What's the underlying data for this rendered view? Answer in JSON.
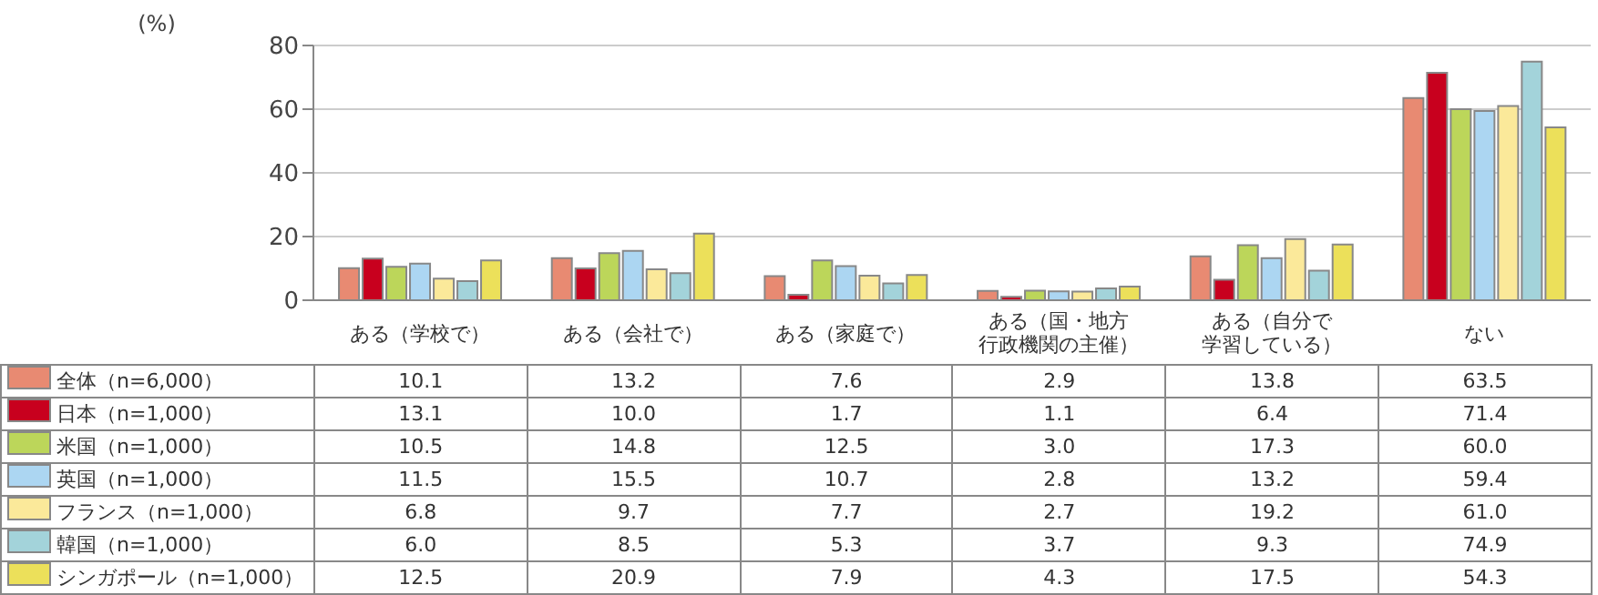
{
  "chart_data": {
    "type": "bar",
    "ylabel": "(%)",
    "categories": [
      "ある（学校で）",
      "ある（会社で）",
      "ある（家庭で）",
      "ある（国・地方行政機関の主催）",
      "ある（自分で学習している）",
      "ない"
    ],
    "series": [
      {
        "name": "全体（n=6,000）",
        "color": "#e88a72",
        "values": [
          10.1,
          13.2,
          7.6,
          2.9,
          13.8,
          63.5
        ],
        "value_labels": [
          "10.1",
          "13.2",
          "7.6",
          "2.9",
          "13.8",
          "63.5"
        ]
      },
      {
        "name": "日本（n=1,000）",
        "color": "#c8001e",
        "values": [
          13.1,
          10.0,
          1.7,
          1.1,
          6.4,
          71.4
        ],
        "value_labels": [
          "13.1",
          "10.0",
          "1.7",
          "1.1",
          "6.4",
          "71.4"
        ]
      },
      {
        "name": "米国（n=1,000）",
        "color": "#bcd65a",
        "values": [
          10.5,
          14.8,
          12.5,
          3.0,
          17.3,
          60.0
        ],
        "value_labels": [
          "10.5",
          "14.8",
          "12.5",
          "3.0",
          "17.3",
          "60.0"
        ]
      },
      {
        "name": "英国（n=1,000）",
        "color": "#acd6f2",
        "values": [
          11.5,
          15.5,
          10.7,
          2.8,
          13.2,
          59.4
        ],
        "value_labels": [
          "11.5",
          "15.5",
          "10.7",
          "2.8",
          "13.2",
          "59.4"
        ]
      },
      {
        "name": "フランス（n=1,000）",
        "color": "#fbe99a",
        "values": [
          6.8,
          9.7,
          7.7,
          2.7,
          19.2,
          61.0
        ],
        "value_labels": [
          "6.8",
          "9.7",
          "7.7",
          "2.7",
          "19.2",
          "61.0"
        ]
      },
      {
        "name": "韓国（n=1,000）",
        "color": "#a3d3da",
        "values": [
          6.0,
          8.5,
          5.3,
          3.7,
          9.3,
          74.9
        ],
        "value_labels": [
          "6.0",
          "8.5",
          "5.3",
          "3.7",
          "9.3",
          "74.9"
        ]
      },
      {
        "name": "シンガポール（n=1,000）",
        "color": "#ece05a",
        "values": [
          12.5,
          20.9,
          7.9,
          4.3,
          17.5,
          54.3
        ],
        "value_labels": [
          "12.5",
          "20.9",
          "7.9",
          "4.3",
          "17.5",
          "54.3"
        ]
      }
    ],
    "ylim": [
      0,
      80
    ],
    "yticks": [
      0,
      20,
      40,
      60,
      80
    ],
    "grid": "y",
    "legend": "bottom"
  }
}
